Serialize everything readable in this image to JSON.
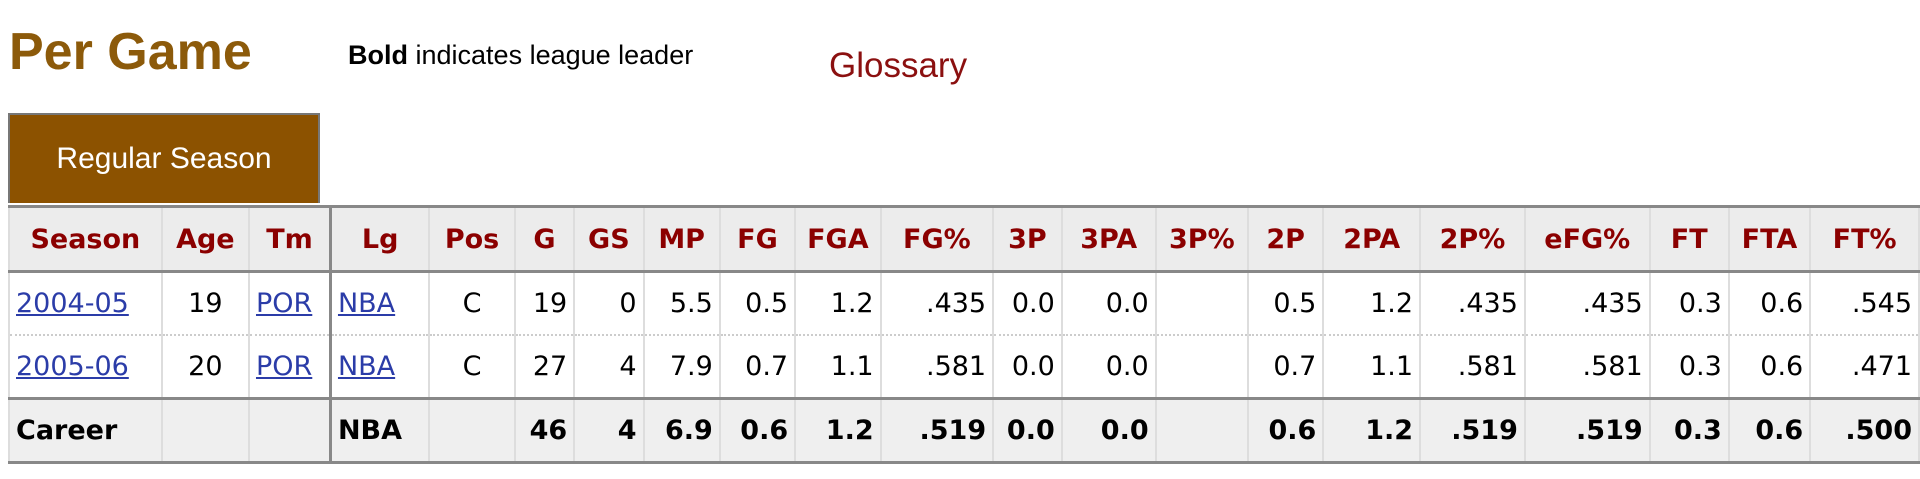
{
  "header": {
    "title": "Per Game",
    "note_bold": "Bold",
    "note_rest": " indicates league leader",
    "glossary_link": "Glossary"
  },
  "tab": {
    "label": "Regular Season"
  },
  "colors": {
    "title": "#8c5a0a",
    "tab_bg": "#8c5200",
    "header_text": "#8b0000",
    "link": "#2b3ca8"
  },
  "table": {
    "columns": [
      "Season",
      "Age",
      "Tm",
      "Lg",
      "Pos",
      "G",
      "GS",
      "MP",
      "FG",
      "FGA",
      "FG%",
      "3P",
      "3PA",
      "3P%",
      "2P",
      "2PA",
      "2P%",
      "eFG%",
      "FT",
      "FTA",
      "FT%"
    ],
    "rows": [
      [
        "2004-05",
        "19",
        "POR",
        "NBA",
        "C",
        "19",
        "0",
        "5.5",
        "0.5",
        "1.2",
        ".435",
        "0.0",
        "0.0",
        "",
        "0.5",
        "1.2",
        ".435",
        ".435",
        "0.3",
        "0.6",
        ".545"
      ],
      [
        "2005-06",
        "20",
        "POR",
        "NBA",
        "C",
        "27",
        "4",
        "7.9",
        "0.7",
        "1.1",
        ".581",
        "0.0",
        "0.0",
        "",
        "0.7",
        "1.1",
        ".581",
        ".581",
        "0.3",
        "0.6",
        ".471"
      ]
    ],
    "career": [
      "Career",
      "",
      "",
      "NBA",
      "",
      "46",
      "4",
      "6.9",
      "0.6",
      "1.2",
      ".519",
      "0.0",
      "0.0",
      "",
      "0.6",
      "1.2",
      ".519",
      ".519",
      "0.3",
      "0.6",
      ".500"
    ]
  }
}
